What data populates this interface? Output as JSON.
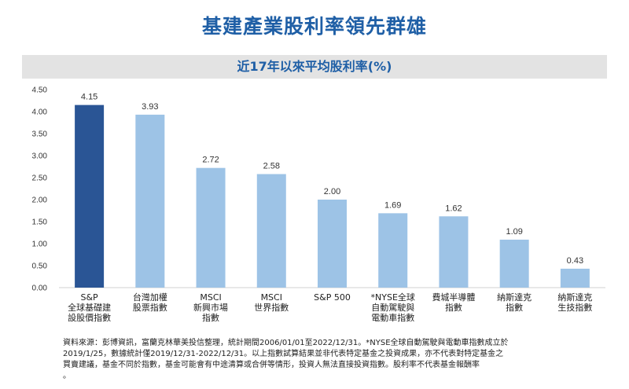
{
  "header": {
    "title": "基建產業股利率領先群雄",
    "subtitle": "近17年以來平均股利率(%)"
  },
  "colors": {
    "highlight": "#2a5595",
    "bar": "#9dc3e6",
    "title": "#1f5fa6"
  },
  "chart_data": {
    "type": "bar",
    "title": "近17年以來平均股利率(%)",
    "xlabel": "",
    "ylabel": "",
    "ylim": [
      0,
      4.5
    ],
    "yticks": [
      "0.00",
      "0.50",
      "1.00",
      "1.50",
      "2.00",
      "2.50",
      "3.00",
      "3.50",
      "4.00",
      "4.50"
    ],
    "grid": false,
    "categories": [
      [
        "S&P",
        "全球基礎建",
        "設股價指數"
      ],
      [
        "台灣加權",
        "股票指數"
      ],
      [
        "MSCI",
        "新興市場",
        "指數"
      ],
      [
        "MSCI",
        "世界指數"
      ],
      [
        "S&P 500"
      ],
      [
        "*NYSE全球",
        "自動駕駛與",
        "電動車指數"
      ],
      [
        "費城半導體",
        "指數"
      ],
      [
        "納斯達克",
        "指數"
      ],
      [
        "納斯達克",
        "生技指數"
      ]
    ],
    "values": [
      4.15,
      3.93,
      2.72,
      2.58,
      2.0,
      1.69,
      1.62,
      1.09,
      0.43
    ],
    "value_labels": [
      "4.15",
      "3.93",
      "2.72",
      "2.58",
      "2.00",
      "1.69",
      "1.62",
      "1.09",
      "0.43"
    ],
    "highlight_index": 0
  },
  "footnote": {
    "lines": [
      "資料來源：彭博資訊，富蘭克林華美投信整理，統計期間2006/01/01至2022/12/31。*NYSE全球自動駕駛與電動車指數成立於",
      "2019/1/25，數據統計僅2019/12/31-2022/12/31。以上指數試算結果並非代表特定基金之投資成果，亦不代表對特定基金之",
      "買賣建議，基金不同於指數，基金可能會有中途清算或合併等情形，投資人無法直接投資指數。股利率不代表基金報酬率",
      "。"
    ]
  }
}
